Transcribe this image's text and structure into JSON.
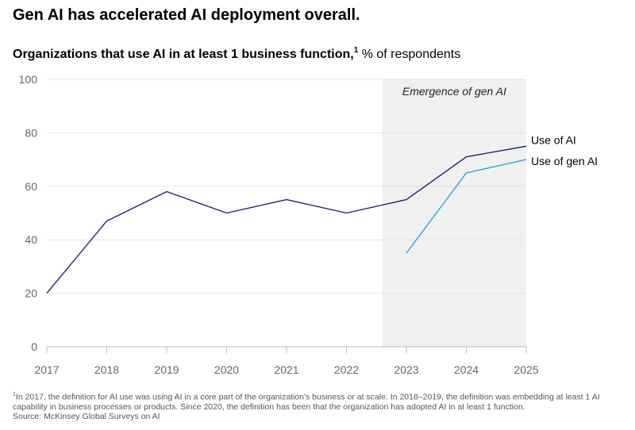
{
  "header": {
    "title": "Gen AI has accelerated AI deployment overall.",
    "subtitle_bold": "Organizations that use AI in at least 1 business function,",
    "subtitle_sup": "1",
    "subtitle_rest": " % of respondents"
  },
  "footnote": {
    "marker": "1",
    "text": "In 2017, the definition for AI use was using AI in a core part of the organization's business or at scale. In 2018–2019, the definition was embedding at least 1 AI capability in business processes or products. Since 2020, the definition has been that the organization has adopted AI in at least 1 function.",
    "source": "Source: McKinsey Global Surveys on AI"
  },
  "colors": {
    "use_of_ai": "#1c2670",
    "use_of_gen_ai": "#2fa6e0",
    "shaded_region": "#f0f0f0",
    "grid": "#e3e3e3",
    "axis": "#bdbdbd"
  },
  "chart_data": {
    "type": "line",
    "title": "Organizations that use AI in at least 1 business function",
    "ylabel": "% of respondents",
    "xlabel": "",
    "x": [
      "2017",
      "2018",
      "2019",
      "2020",
      "2021",
      "2022",
      "2023",
      "2024",
      "2025"
    ],
    "ylim": [
      0,
      100
    ],
    "yticks": [
      0,
      20,
      40,
      60,
      80,
      100
    ],
    "grid": true,
    "series": [
      {
        "name": "Use of AI",
        "values": [
          20,
          47,
          58,
          50,
          55,
          50,
          55,
          71,
          75
        ]
      },
      {
        "name": "Use of gen AI",
        "values": [
          null,
          null,
          null,
          null,
          null,
          null,
          35,
          65,
          70
        ]
      }
    ],
    "shaded_region": {
      "x_start": 2022.6,
      "x_end": 2025,
      "label": "Emergence of gen AI"
    }
  }
}
